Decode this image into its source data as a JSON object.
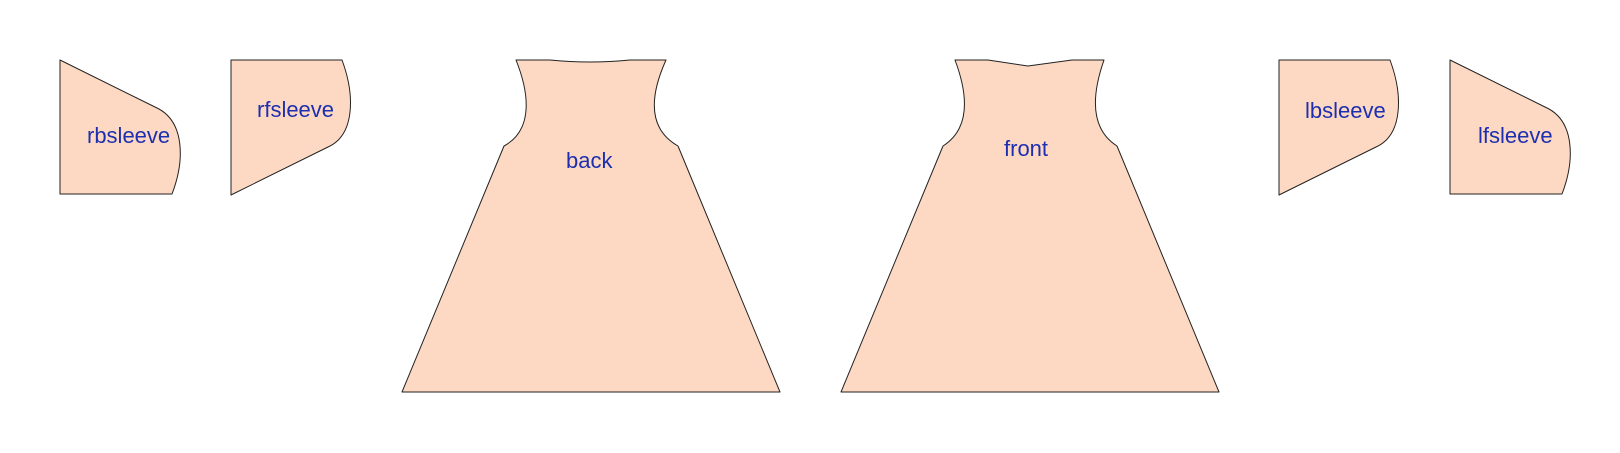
{
  "colors": {
    "piece_fill": "#fdd9c3",
    "outline": "#222222",
    "label": "#1c2fb0",
    "background": "#ffffff"
  },
  "pieces": [
    {
      "id": "rbsleeve",
      "label": "rbsleeve"
    },
    {
      "id": "rfsleeve",
      "label": "rfsleeve"
    },
    {
      "id": "back",
      "label": "back"
    },
    {
      "id": "front",
      "label": "front"
    },
    {
      "id": "lbsleeve",
      "label": "lbsleeve"
    },
    {
      "id": "lfsleeve",
      "label": "lfsleeve"
    }
  ]
}
